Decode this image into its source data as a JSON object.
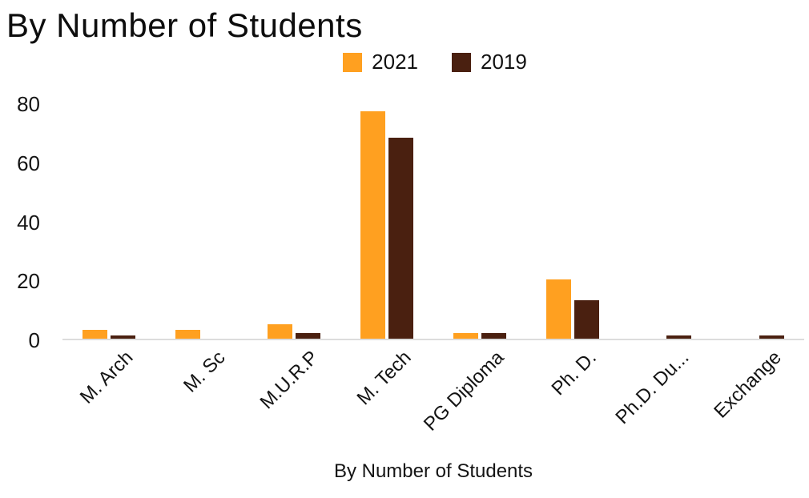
{
  "chart_data": {
    "type": "bar",
    "title": "By Number of Students",
    "xlabel": "By Number of Students",
    "ylabel": "",
    "categories": [
      "M. Arch",
      "M. Sc",
      "M.U.R.P",
      "M. Tech",
      "PG Diploma",
      "Ph. D.",
      "Ph.D. Du...",
      "Exchange"
    ],
    "series": [
      {
        "name": "2021",
        "color": "#FFA020",
        "values": [
          3,
          3,
          5,
          77,
          2,
          20,
          0,
          0
        ]
      },
      {
        "name": "2019",
        "color": "#4A2010",
        "values": [
          1,
          0,
          2,
          68,
          2,
          13,
          1,
          1
        ]
      }
    ],
    "ylim": [
      0,
      80
    ],
    "yticks": [
      0,
      20,
      40,
      60,
      80
    ],
    "grid": false,
    "legend_position": "top"
  },
  "colors": {
    "text": "#111111",
    "axis_line": "#dcdcdc",
    "background": "#ffffff"
  }
}
